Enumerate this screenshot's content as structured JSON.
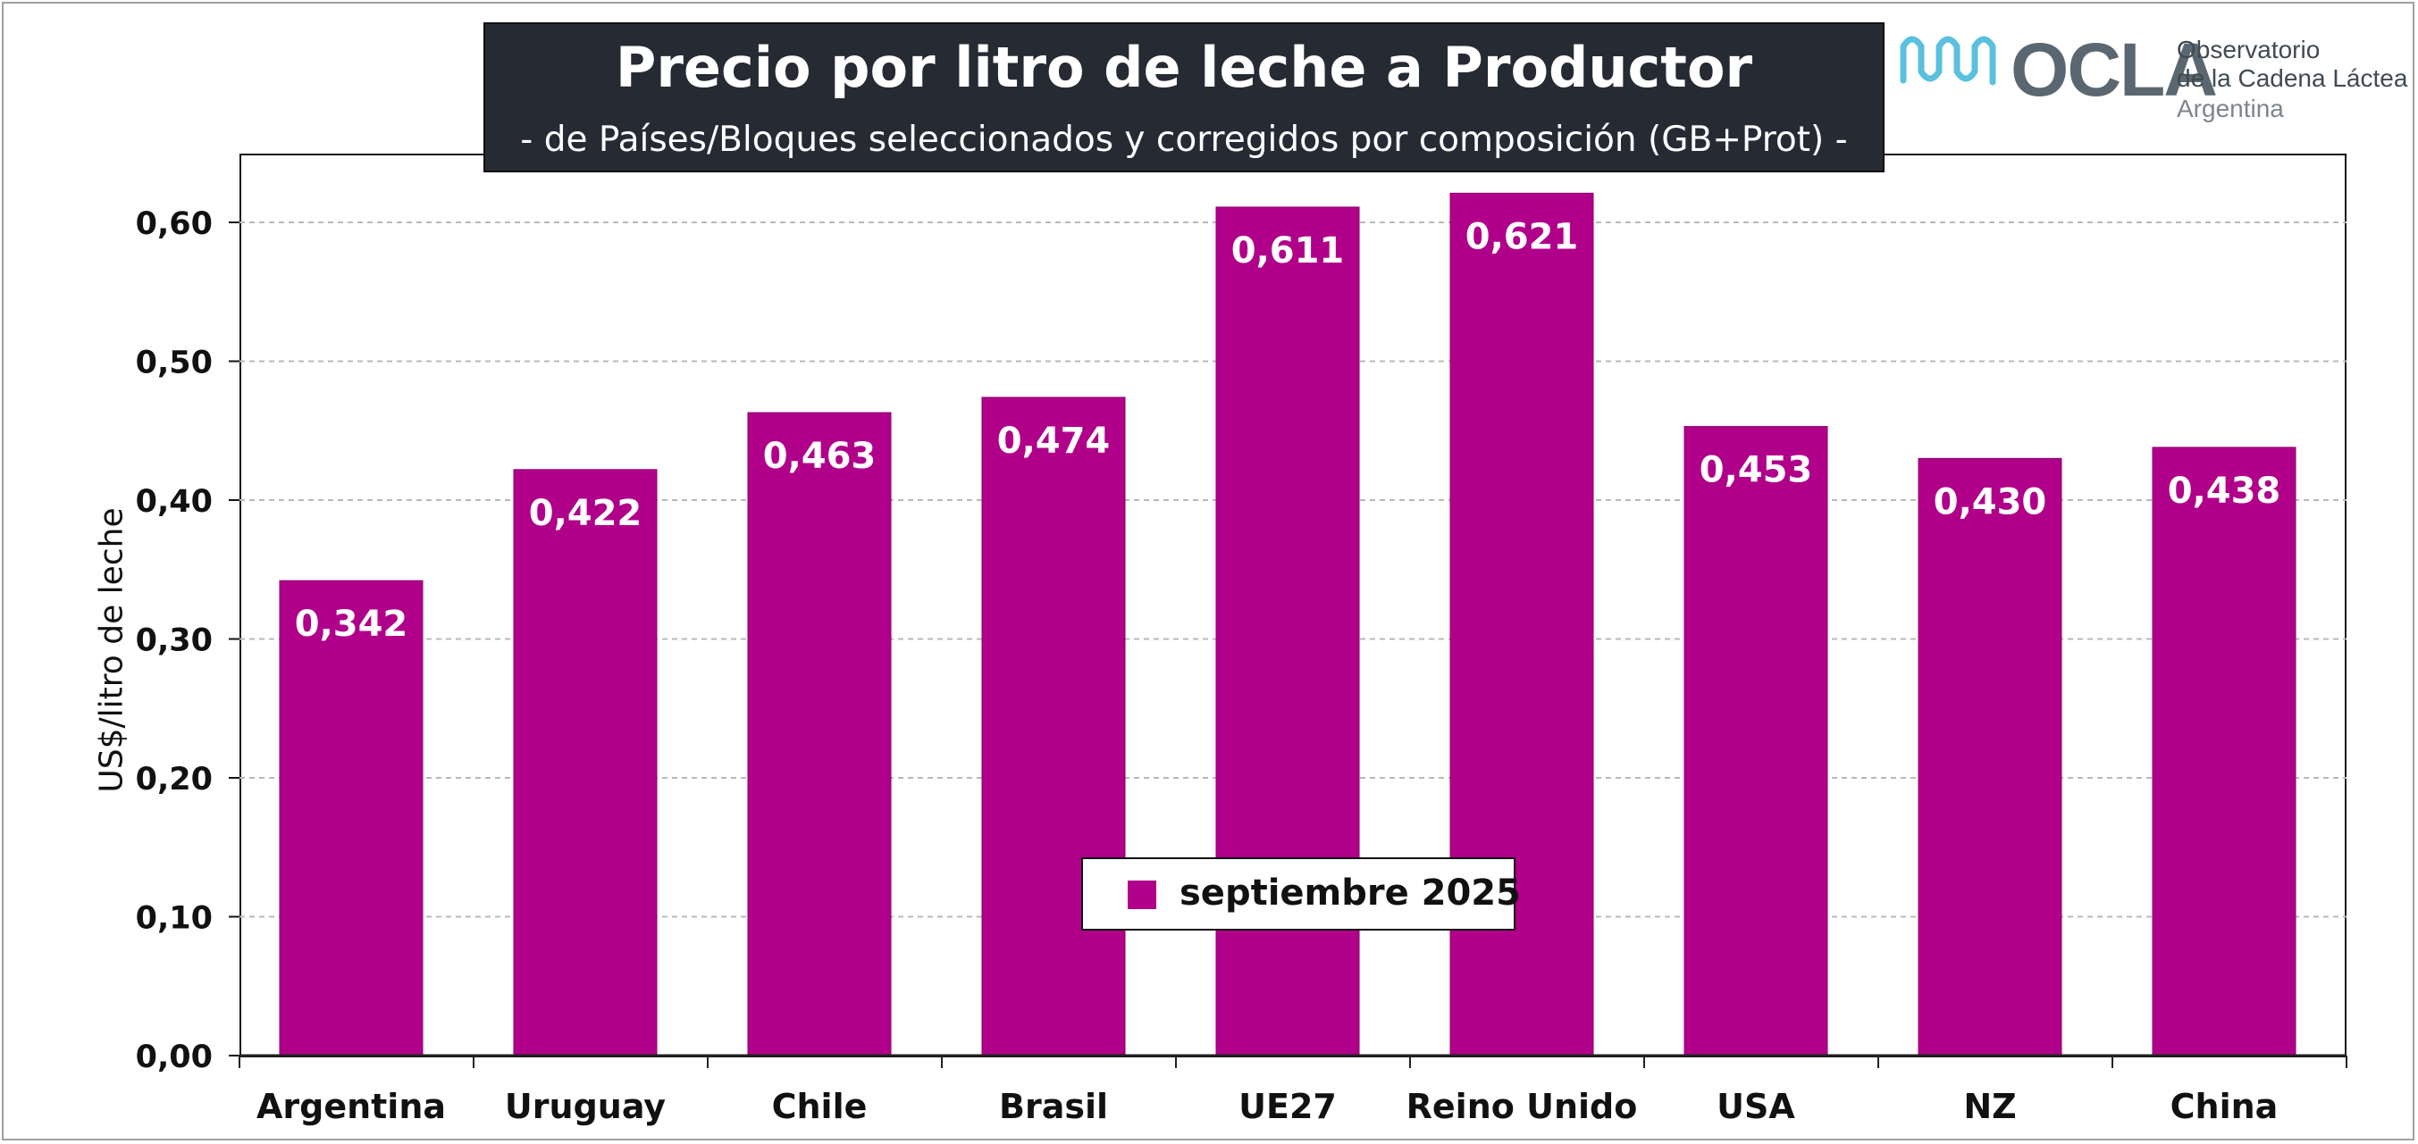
{
  "chart_data": {
    "type": "bar",
    "title": "Precio por litro de leche a Productor",
    "subtitle": "-  de Países/Bloques seleccionados y corregidos por composición (GB+Prot) -",
    "xlabel": "",
    "ylabel": "US$/litro de leche",
    "categories": [
      "Argentina",
      "Uruguay",
      "Chile",
      "Brasil",
      "UE27",
      "Reino Unido",
      "USA",
      "NZ",
      "China"
    ],
    "series": [
      {
        "name": "septiembre 2025",
        "values": [
          0.342,
          0.422,
          0.463,
          0.474,
          0.611,
          0.621,
          0.453,
          0.43,
          0.438
        ],
        "data_labels": [
          "0,342",
          "0,422",
          "0,463",
          "0,474",
          "0,611",
          "0,621",
          "0,453",
          "0,430",
          "0,438"
        ],
        "color": "#b0008a"
      }
    ],
    "ylim": [
      0,
      0.65
    ],
    "yticks": [
      0,
      0.1,
      0.2,
      0.3,
      0.4,
      0.5,
      0.6
    ],
    "ytick_labels": [
      "0,00",
      "0,10",
      "0,20",
      "0,30",
      "0,40",
      "0,50",
      "0,60"
    ],
    "grid": true,
    "legend_position": "bottom-center"
  },
  "logo": {
    "name": "OCLA",
    "line1": "Observatorio",
    "line2": "de la Cadena Láctea",
    "line3": "Argentina",
    "mark_icon": "milk-wave-icon",
    "mark_color": "#5bc0de"
  }
}
